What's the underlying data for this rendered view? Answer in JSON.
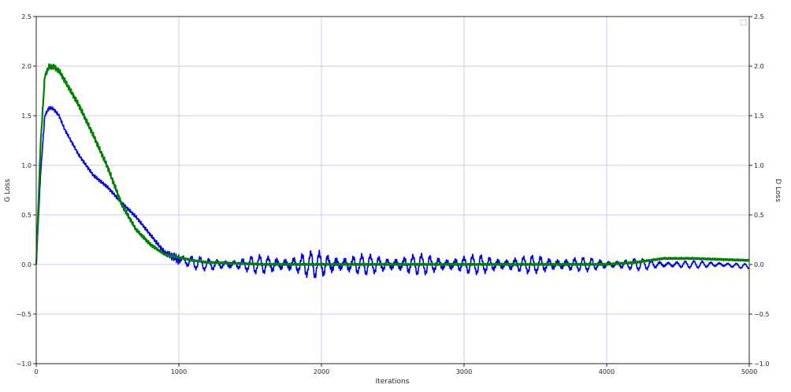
{
  "chart_data": {
    "type": "line",
    "title": "",
    "xlabel": "Iterations",
    "ylabel_left": "G Loss",
    "ylabel_right": "D Loss",
    "xlim": [
      0,
      5000
    ],
    "ylim_left": [
      -1.0,
      2.5
    ],
    "ylim_right": [
      -1.0,
      2.5
    ],
    "x_ticks": [
      "0",
      "1000",
      "2000",
      "3000",
      "4000",
      "5000"
    ],
    "y_ticks_left": [
      "−1.0",
      "−0.5",
      "0.0",
      "0.5",
      "1.0",
      "1.5",
      "2.0",
      "2.5"
    ],
    "y_ticks_right": [
      "−1.0",
      "−0.5",
      "0.0",
      "0.5",
      "1.0",
      "1.5",
      "2.0",
      "2.5"
    ],
    "grid": true,
    "grid_color": "#c8c8f5",
    "legend": "top-right (empty)",
    "series": [
      {
        "axis": "left",
        "color": "#0000ee",
        "x": [
          0,
          30,
          60,
          90,
          120,
          160,
          200,
          300,
          400,
          500,
          600,
          700,
          800,
          900,
          1000,
          1100,
          1200,
          1400,
          1600,
          1800,
          2000,
          2200,
          2400,
          2600,
          2800,
          3000,
          3200,
          3400,
          3600,
          3800,
          4000,
          4200,
          4400,
          4600,
          4800,
          5000
        ],
        "values": [
          0.0,
          0.9,
          1.5,
          1.58,
          1.57,
          1.5,
          1.36,
          1.1,
          0.9,
          0.78,
          0.62,
          0.48,
          0.3,
          0.12,
          0.05,
          0.02,
          0.0,
          0.0,
          0.0,
          0.0,
          0.0,
          0.0,
          0.0,
          0.0,
          0.0,
          0.0,
          0.0,
          0.0,
          0.0,
          0.0,
          0.0,
          0.0,
          0.0,
          0.0,
          0.0,
          -0.02
        ],
        "oscillation": [
          0.0,
          0.02,
          0.02,
          0.02,
          0.02,
          0.02,
          0.02,
          0.02,
          0.02,
          0.02,
          0.02,
          0.02,
          0.02,
          0.03,
          0.06,
          0.06,
          0.05,
          0.06,
          0.08,
          0.09,
          0.12,
          0.09,
          0.08,
          0.09,
          0.08,
          0.08,
          0.08,
          0.07,
          0.08,
          0.06,
          0.05,
          0.05,
          0.04,
          0.03,
          0.03,
          0.02
        ]
      },
      {
        "axis": "right",
        "color": "#008000",
        "x": [
          0,
          30,
          60,
          90,
          120,
          160,
          200,
          300,
          400,
          500,
          600,
          700,
          800,
          900,
          1000,
          1100,
          1200,
          1400,
          1600,
          1800,
          2000,
          2200,
          2400,
          2600,
          2800,
          3000,
          3200,
          3400,
          3600,
          3800,
          4000,
          4200,
          4400,
          4600,
          4800,
          5000
        ],
        "values": [
          0.0,
          1.2,
          1.9,
          1.99,
          1.99,
          1.95,
          1.85,
          1.6,
          1.3,
          0.98,
          0.6,
          0.35,
          0.2,
          0.1,
          0.07,
          0.04,
          0.02,
          0.01,
          0.0,
          0.0,
          0.0,
          0.0,
          0.0,
          0.0,
          0.0,
          0.0,
          0.0,
          0.0,
          0.0,
          0.0,
          0.0,
          0.02,
          0.06,
          0.06,
          0.05,
          0.04
        ],
        "oscillation": [
          0.0,
          0.03,
          0.03,
          0.03,
          0.03,
          0.03,
          0.03,
          0.03,
          0.03,
          0.03,
          0.03,
          0.02,
          0.02,
          0.01,
          0.01,
          0.01,
          0.01,
          0.01,
          0.01,
          0.01,
          0.01,
          0.01,
          0.01,
          0.01,
          0.01,
          0.01,
          0.01,
          0.01,
          0.01,
          0.01,
          0.01,
          0.01,
          0.01,
          0.01,
          0.01,
          0.01
        ]
      }
    ]
  }
}
